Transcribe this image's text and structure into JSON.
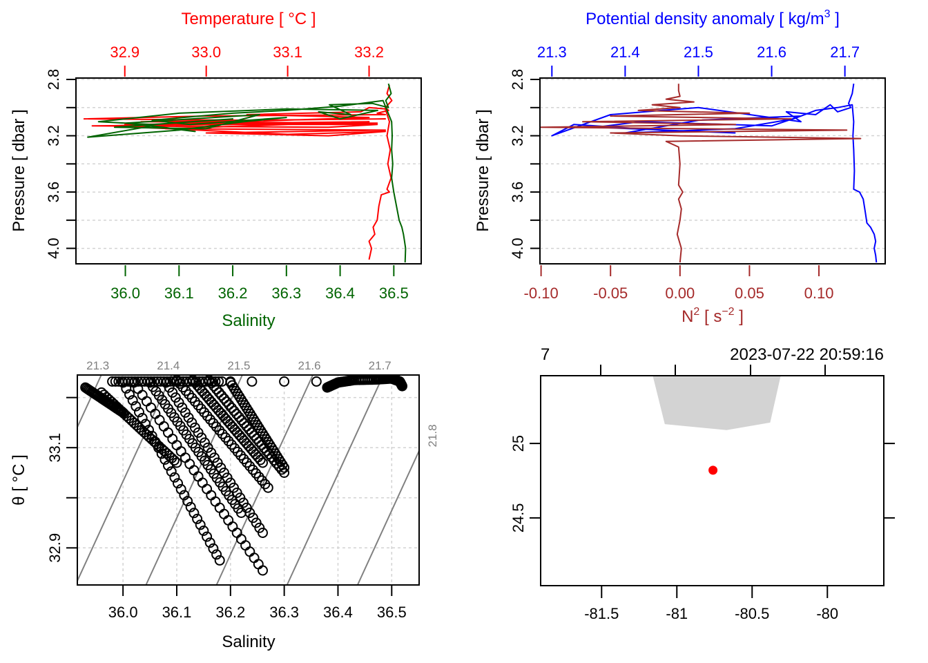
{
  "chart_data": [
    {
      "id": "profile_TS",
      "type": "line",
      "title": "",
      "top_axis_label": "Temperature [ °C ]",
      "bottom_axis_label": "Salinity",
      "ylabel": "Pressure [ dbar ]",
      "y_reversed": true,
      "ylim": [
        2.79,
        4.11
      ],
      "yticks": [
        2.8,
        3.2,
        3.6,
        4.0
      ],
      "yticks_labels": [
        "2.8",
        "3.2",
        "3.6",
        "4.0"
      ],
      "y_gridlines": [
        2.8,
        3.0,
        3.2,
        3.4,
        3.6,
        3.8,
        4.0
      ],
      "top_axis": {
        "range": [
          32.84,
          33.264
        ],
        "ticks": [
          32.9,
          33.0,
          33.1,
          33.2
        ],
        "labels": [
          "32.9",
          "33.0",
          "33.1",
          "33.2"
        ],
        "color": "#ff0000"
      },
      "bottom_axis": {
        "range": [
          35.908,
          36.551
        ],
        "ticks": [
          36.0,
          36.1,
          36.2,
          36.3,
          36.4,
          36.5
        ],
        "labels": [
          "36.0",
          "36.1",
          "36.2",
          "36.3",
          "36.4",
          "36.5"
        ],
        "color": "#006400"
      },
      "series": [
        {
          "name": "Temperature",
          "axis": "top",
          "color": "#ff0000",
          "x": [
            33.225,
            33.222,
            33.228,
            33.22,
            33.224,
            33.21,
            33.22,
            33.0,
            32.85,
            33.05,
            33.22,
            32.92,
            33.21,
            32.86,
            33.15,
            33.21,
            32.9,
            33.2,
            32.95,
            33.22,
            33.0,
            33.15,
            33.22,
            33.1,
            32.88,
            33.2,
            33.05,
            33.19,
            33.2,
            33.22,
            33.225,
            33.222,
            33.226,
            33.223,
            33.227,
            33.222,
            33.225,
            33.215,
            33.212,
            33.21,
            33.205,
            33.207,
            33.2,
            33.203,
            33.2
          ],
          "y": [
            2.84,
            2.9,
            2.95,
            3.0,
            3.02,
            3.04,
            3.05,
            3.06,
            3.08,
            3.09,
            3.08,
            3.1,
            3.11,
            3.13,
            3.14,
            3.12,
            3.12,
            3.1,
            3.15,
            3.16,
            3.18,
            3.2,
            3.17,
            3.19,
            3.13,
            3.07,
            3.05,
            3.03,
            3.0,
            3.01,
            3.1,
            3.2,
            3.3,
            3.4,
            3.5,
            3.58,
            3.6,
            3.62,
            3.7,
            3.8,
            3.85,
            3.9,
            3.95,
            4.0,
            4.08
          ]
        },
        {
          "name": "Salinity",
          "axis": "bottom",
          "color": "#006400",
          "x": [
            36.49,
            36.495,
            36.485,
            36.49,
            36.46,
            36.38,
            36.42,
            36.36,
            36.4,
            36.47,
            36.3,
            36.1,
            35.95,
            36.05,
            36.2,
            35.98,
            36.15,
            36.25,
            36.0,
            36.13,
            36.05,
            35.93,
            36.1,
            36.22,
            36.3,
            36.12,
            36.05,
            36.2,
            36.3,
            36.4,
            36.48,
            36.496,
            36.497,
            36.496,
            36.498,
            36.496,
            36.5,
            36.505,
            36.51,
            36.515,
            36.518,
            36.52,
            36.522,
            36.521
          ],
          "y": [
            2.83,
            2.9,
            2.95,
            3.0,
            2.97,
            2.98,
            3.05,
            3.03,
            3.08,
            3.02,
            3.01,
            3.04,
            3.1,
            3.12,
            3.08,
            3.14,
            3.15,
            3.05,
            3.11,
            3.17,
            3.13,
            3.21,
            3.16,
            3.1,
            3.07,
            3.12,
            3.09,
            3.04,
            3.02,
            2.99,
            2.95,
            3.1,
            3.2,
            3.3,
            3.4,
            3.5,
            3.6,
            3.7,
            3.8,
            3.85,
            3.9,
            3.95,
            4.0,
            4.1
          ]
        }
      ]
    },
    {
      "id": "profile_density_N2",
      "type": "line",
      "top_axis_label": "Potential density anomaly [ kg/m³ ]",
      "top_axis_label_main": "Potential density anomaly [ kg/m",
      "top_axis_label_sup": "3",
      "top_axis_label_end": " ]",
      "bottom_axis_label": "N² [ s⁻² ]",
      "bottom_axis_label_main": "N",
      "bottom_axis_label_sup": "2",
      "bottom_axis_label_mid": " [ s",
      "bottom_axis_label_sup2": "−2",
      "bottom_axis_label_end": " ]",
      "ylabel": "Pressure [ dbar ]",
      "y_reversed": true,
      "ylim": [
        2.79,
        4.11
      ],
      "yticks": [
        2.8,
        3.2,
        3.6,
        4.0
      ],
      "yticks_labels": [
        "2.8",
        "3.2",
        "3.6",
        "4.0"
      ],
      "y_gridlines": [
        2.8,
        3.0,
        3.2,
        3.4,
        3.6,
        3.8,
        4.0
      ],
      "top_axis": {
        "range": [
          21.2837,
          21.755
        ],
        "ticks": [
          21.3,
          21.4,
          21.5,
          21.6,
          21.7
        ],
        "labels": [
          "21.3",
          "21.4",
          "21.5",
          "21.6",
          "21.7"
        ],
        "color": "#0000ff"
      },
      "bottom_axis": {
        "range": [
          -0.1008,
          0.1477
        ],
        "ticks": [
          -0.1,
          -0.05,
          0.0,
          0.05,
          0.1
        ],
        "labels": [
          "-0.10",
          "-0.05",
          "0.00",
          "0.05",
          "0.10"
        ],
        "color": "#a52a2a"
      },
      "series": [
        {
          "name": "Potential density anomaly",
          "axis": "top",
          "color": "#0000ff",
          "x": [
            21.712,
            21.71,
            21.705,
            21.708,
            21.69,
            21.68,
            21.66,
            21.62,
            21.64,
            21.5,
            21.45,
            21.38,
            21.3,
            21.33,
            21.45,
            21.55,
            21.36,
            21.42,
            21.6,
            21.64,
            21.5,
            21.4,
            21.55,
            21.63,
            21.66,
            21.69,
            21.71,
            21.712,
            21.711,
            21.712,
            21.713,
            21.712,
            21.72,
            21.725,
            21.728,
            21.73,
            21.735,
            21.74,
            21.742,
            21.74,
            21.742,
            21.743
          ],
          "y": [
            2.83,
            2.9,
            2.97,
            3.0,
            3.03,
            2.98,
            3.05,
            3.03,
            3.1,
            3.0,
            3.02,
            3.05,
            3.2,
            3.12,
            3.16,
            3.18,
            3.14,
            3.1,
            3.13,
            3.06,
            3.09,
            3.18,
            3.15,
            3.08,
            3.02,
            3.0,
            2.98,
            3.1,
            3.2,
            3.3,
            3.45,
            3.58,
            3.6,
            3.65,
            3.75,
            3.82,
            3.85,
            3.9,
            3.95,
            4.0,
            4.05,
            4.1
          ]
        },
        {
          "name": "N2",
          "axis": "bottom",
          "color": "#a52a2a",
          "x": [
            -0.001,
            -0.001,
            0.0,
            -0.01,
            0.01,
            -0.02,
            0.0,
            -0.03,
            0.05,
            -0.05,
            0.08,
            -0.07,
            0.04,
            -0.1,
            0.12,
            -0.05,
            0.0,
            0.13,
            -0.01,
            -0.001,
            0.0,
            -0.001,
            0.002,
            -0.001,
            0.001,
            0.0,
            -0.002,
            0.001,
            0.0
          ],
          "y": [
            2.83,
            2.88,
            2.92,
            2.94,
            2.96,
            2.98,
            3.0,
            3.02,
            3.04,
            3.06,
            3.08,
            3.1,
            3.12,
            3.14,
            3.16,
            3.18,
            3.2,
            3.22,
            3.24,
            3.28,
            3.4,
            3.55,
            3.6,
            3.65,
            3.72,
            3.8,
            3.9,
            4.0,
            4.1
          ]
        }
      ]
    },
    {
      "id": "TS_diagram",
      "type": "scatter",
      "xlabel": "Salinity",
      "ylabel": "θ [ °C ]",
      "xlim": [
        35.915,
        36.551
      ],
      "ylim": [
        32.826,
        33.245
      ],
      "xticks": [
        36.0,
        36.1,
        36.2,
        36.3,
        36.4,
        36.5
      ],
      "xtick_labels": [
        "36.0",
        "36.1",
        "36.2",
        "36.3",
        "36.4",
        "36.5"
      ],
      "yticks": [
        33.2,
        33.1,
        33.0,
        32.9
      ],
      "ytick_labels": [
        "",
        "33.1",
        "",
        "32.9"
      ],
      "grid": true,
      "isopycnals": [
        21.3,
        21.4,
        21.5,
        21.6,
        21.7,
        21.8
      ],
      "isopycnal_labels": [
        "21.3",
        "21.4",
        "21.5",
        "21.6",
        "21.7",
        "21.8"
      ],
      "marker": "open-circle",
      "branches": [
        {
          "s0": 35.93,
          "t0": 33.22,
          "s1": 36.0,
          "t1": 33.17
        },
        {
          "s0": 35.96,
          "t0": 33.21,
          "s1": 36.1,
          "t1": 33.07
        },
        {
          "s0": 36.0,
          "t0": 33.23,
          "s1": 36.18,
          "t1": 32.875
        },
        {
          "s0": 36.02,
          "t0": 33.23,
          "s1": 36.26,
          "t1": 32.855
        },
        {
          "s0": 36.05,
          "t0": 33.23,
          "s1": 36.22,
          "t1": 32.97
        },
        {
          "s0": 36.08,
          "t0": 33.23,
          "s1": 36.26,
          "t1": 32.93
        },
        {
          "s0": 36.1,
          "t0": 33.235,
          "s1": 36.27,
          "t1": 33.02
        },
        {
          "s0": 36.13,
          "t0": 33.235,
          "s1": 36.26,
          "t1": 33.07
        },
        {
          "s0": 36.16,
          "t0": 33.235,
          "s1": 36.3,
          "t1": 33.05
        },
        {
          "s0": 36.2,
          "t0": 33.23,
          "s1": 36.3,
          "t1": 33.06
        }
      ],
      "top_band": {
        "s_start": 35.98,
        "s_end": 36.19,
        "t": 33.232
      },
      "sparse_points": [
        {
          "s": 36.2,
          "t": 33.232
        },
        {
          "s": 36.24,
          "t": 33.232
        },
        {
          "s": 36.3,
          "t": 33.232
        },
        {
          "s": 36.36,
          "t": 33.232
        }
      ],
      "dense_cluster": {
        "s": [
          36.38,
          36.4,
          36.43,
          36.47,
          36.5,
          36.515,
          36.52
        ],
        "t": [
          33.22,
          33.23,
          33.235,
          33.236,
          33.238,
          33.232,
          33.222
        ]
      }
    },
    {
      "id": "station_map",
      "type": "scatter",
      "xlim": [
        -81.905,
        -79.625
      ],
      "ylim": [
        24.045,
        25.455
      ],
      "xticks": [
        -81.5,
        -81.0,
        -80.5,
        -80.0
      ],
      "xtick_labels": [
        "-81.5",
        "-81",
        "-80.5",
        "-80"
      ],
      "yticks": [
        25.0,
        24.5
      ],
      "ytick_labels": [
        "25",
        "24.5"
      ],
      "top_labels": {
        "left": "7",
        "right": "2023-07-22 20:59:16"
      },
      "land_polygon": {
        "lon": [
          -81.16,
          -81.08,
          -80.67,
          -80.38,
          -80.31
        ],
        "lat": [
          25.455,
          25.13,
          25.09,
          25.14,
          25.455
        ],
        "color": "#d3d3d3"
      },
      "station": {
        "lon": -80.76,
        "lat": 24.82,
        "color": "#ff0000"
      }
    }
  ]
}
